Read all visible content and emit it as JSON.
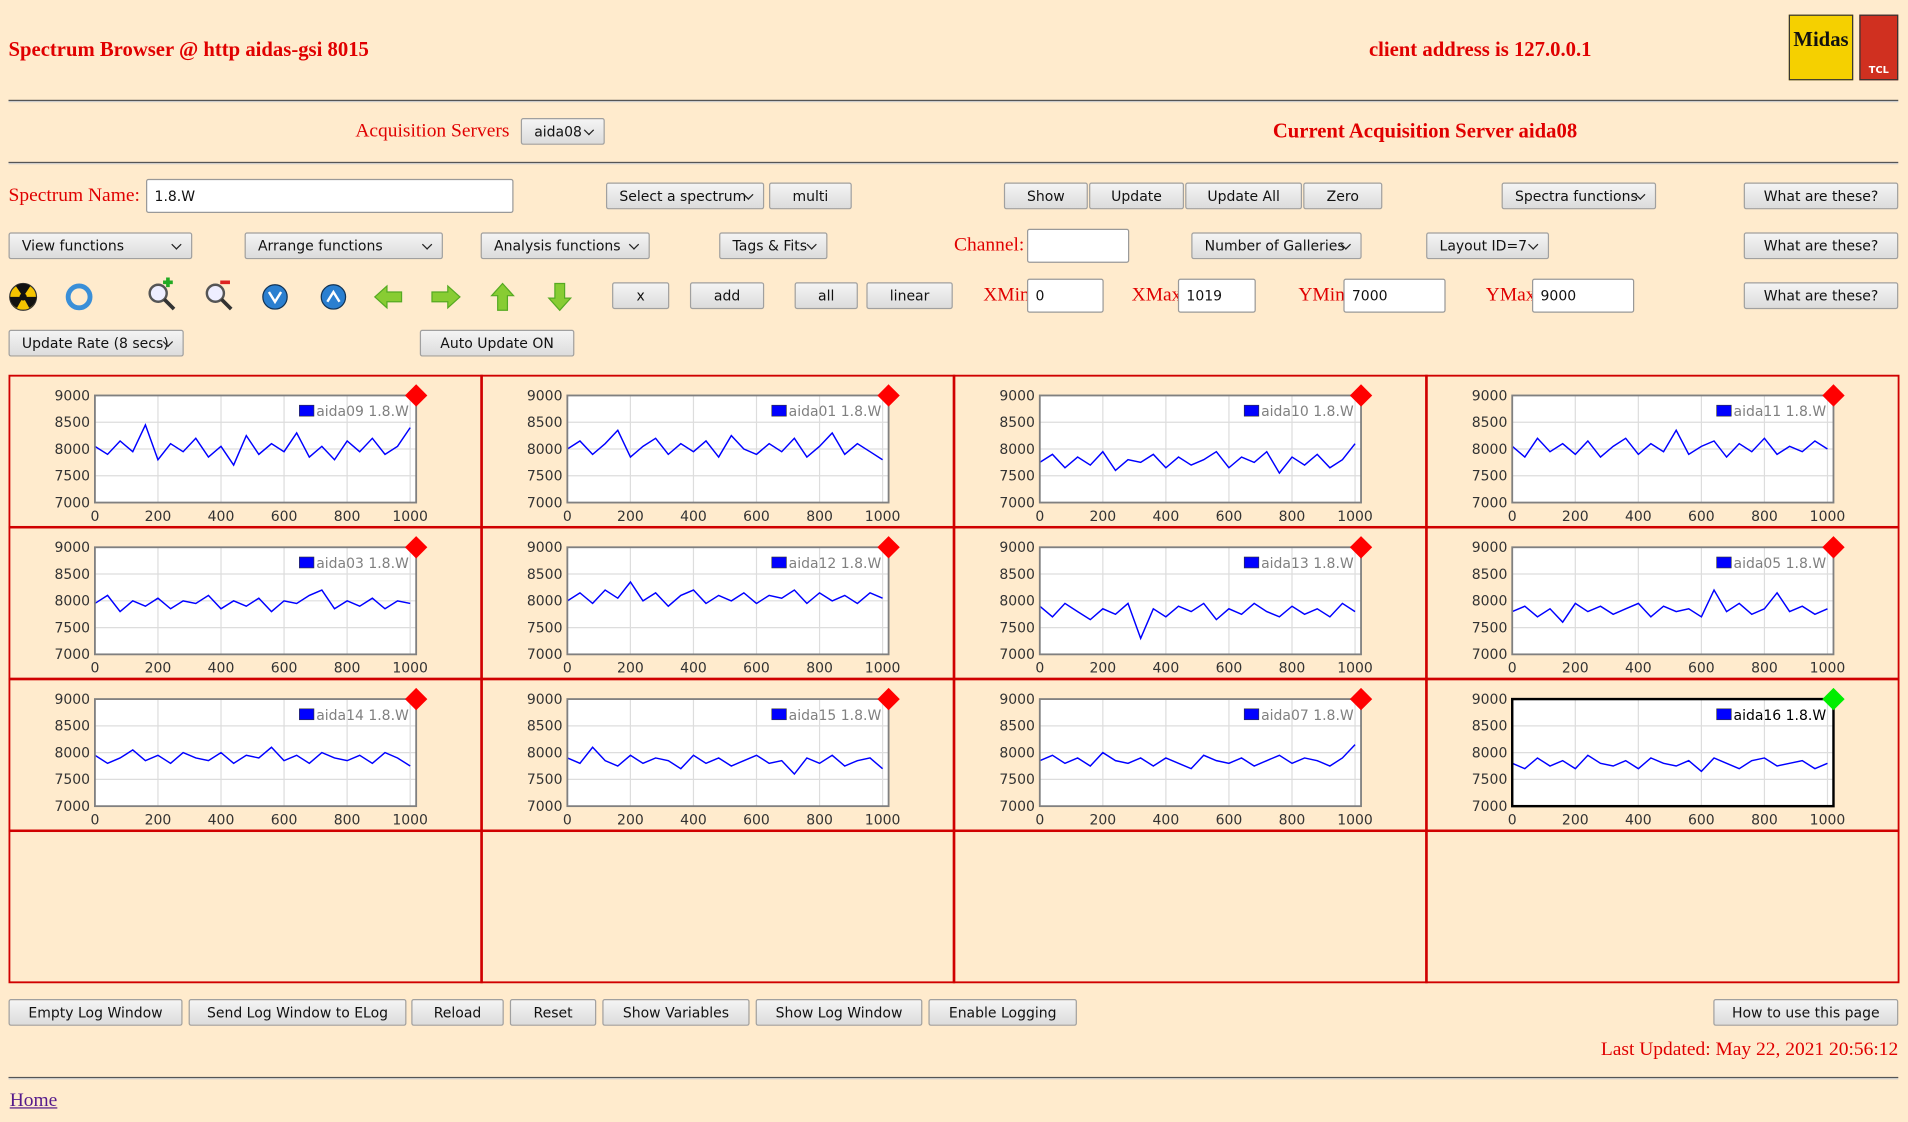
{
  "header": {
    "title": "Spectrum Browser @ http aidas-gsi 8015",
    "client_address": "client address is 127.0.0.1",
    "logo": "Midas",
    "logo2": "TCL"
  },
  "servers": {
    "label": "Acquisition Servers",
    "selected": "aida08",
    "current": "Current Acquisition Server aida08"
  },
  "controls": {
    "spectrum_name_label": "Spectrum Name:",
    "spectrum_name": "1.8.W",
    "select_spectrum": "Select a spectrum",
    "multi": "multi",
    "show": "Show",
    "update": "Update",
    "update_all": "Update All",
    "zero": "Zero",
    "spectra_functions": "Spectra functions",
    "help": [
      "What are these?",
      "What are these?",
      "What are these?"
    ],
    "view_functions": "View functions",
    "arrange_functions": "Arrange functions",
    "analysis_functions": "Analysis functions",
    "tags_fits": "Tags & Fits",
    "channel_label": "Channel:",
    "galleries": "Number of Galleries",
    "layout": "Layout ID=7",
    "x": "x",
    "add": "add",
    "all": "all",
    "linear": "linear",
    "xmin_label": "XMin",
    "xmin": "0",
    "xmax_label": "XMax",
    "xmax": "1019",
    "ymin_label": "YMin",
    "ymin": "7000",
    "ymax_label": "YMax",
    "ymax": "9000",
    "update_rate": "Update Rate (8 secs)",
    "auto_update": "Auto Update ON"
  },
  "chart_data": [
    {
      "type": "line",
      "x": [
        0,
        40,
        80,
        120,
        160,
        200,
        240,
        280,
        320,
        360,
        400,
        440,
        480,
        520,
        560,
        600,
        640,
        680,
        720,
        760,
        800,
        840,
        880,
        920,
        960,
        1000
      ],
      "series": [
        {
          "name": "aida09 1.8.W",
          "color": "#0000ff",
          "values": [
            8050,
            7900,
            8150,
            7950,
            8450,
            7800,
            8100,
            7950,
            8200,
            7850,
            8050,
            7700,
            8250,
            7900,
            8100,
            7950,
            8300,
            7850,
            8050,
            7800,
            8150,
            7950,
            8200,
            7900,
            8050,
            8400
          ]
        }
      ],
      "xlim": [
        0,
        1019
      ],
      "ylim": [
        7000,
        9000
      ],
      "xticks": [
        0,
        200,
        400,
        600,
        800,
        1000
      ],
      "yticks": [
        7000,
        7500,
        8000,
        8500,
        9000
      ],
      "grid": true,
      "legend": "top-right",
      "indicator_color": "#ff0000",
      "frame_color": "#808080"
    },
    {
      "type": "line",
      "x": [
        0,
        40,
        80,
        120,
        160,
        200,
        240,
        280,
        320,
        360,
        400,
        440,
        480,
        520,
        560,
        600,
        640,
        680,
        720,
        760,
        800,
        840,
        880,
        920,
        960,
        1000
      ],
      "series": [
        {
          "name": "aida01 1.8.W",
          "color": "#0000ff",
          "values": [
            8000,
            8150,
            7900,
            8100,
            8350,
            7850,
            8050,
            8200,
            7900,
            8100,
            7950,
            8150,
            7850,
            8250,
            8000,
            7900,
            8100,
            7950,
            8200,
            7850,
            8050,
            8300,
            7900,
            8100,
            7950,
            7800
          ]
        }
      ],
      "xlim": [
        0,
        1019
      ],
      "ylim": [
        7000,
        9000
      ],
      "xticks": [
        0,
        200,
        400,
        600,
        800,
        1000
      ],
      "yticks": [
        7000,
        7500,
        8000,
        8500,
        9000
      ],
      "grid": true,
      "legend": "top-right",
      "indicator_color": "#ff0000",
      "frame_color": "#808080"
    },
    {
      "type": "line",
      "x": [
        0,
        40,
        80,
        120,
        160,
        200,
        240,
        280,
        320,
        360,
        400,
        440,
        480,
        520,
        560,
        600,
        640,
        680,
        720,
        760,
        800,
        840,
        880,
        920,
        960,
        1000
      ],
      "series": [
        {
          "name": "aida10 1.8.W",
          "color": "#0000ff",
          "values": [
            7750,
            7900,
            7650,
            7850,
            7700,
            7950,
            7600,
            7800,
            7750,
            7900,
            7650,
            7850,
            7700,
            7800,
            7950,
            7650,
            7850,
            7750,
            7950,
            7550,
            7850,
            7700,
            7900,
            7650,
            7800,
            8100
          ]
        }
      ],
      "xlim": [
        0,
        1019
      ],
      "ylim": [
        7000,
        9000
      ],
      "xticks": [
        0,
        200,
        400,
        600,
        800,
        1000
      ],
      "yticks": [
        7000,
        7500,
        8000,
        8500,
        9000
      ],
      "grid": true,
      "legend": "top-right",
      "indicator_color": "#ff0000",
      "frame_color": "#808080"
    },
    {
      "type": "line",
      "x": [
        0,
        40,
        80,
        120,
        160,
        200,
        240,
        280,
        320,
        360,
        400,
        440,
        480,
        520,
        560,
        600,
        640,
        680,
        720,
        760,
        800,
        840,
        880,
        920,
        960,
        1000
      ],
      "series": [
        {
          "name": "aida11 1.8.W",
          "color": "#0000ff",
          "values": [
            8050,
            7850,
            8200,
            7950,
            8100,
            7900,
            8150,
            7850,
            8050,
            8200,
            7900,
            8100,
            7950,
            8350,
            7900,
            8050,
            8150,
            7850,
            8100,
            7950,
            8200,
            7900,
            8050,
            7950,
            8150,
            8000
          ]
        }
      ],
      "xlim": [
        0,
        1019
      ],
      "ylim": [
        7000,
        9000
      ],
      "xticks": [
        0,
        200,
        400,
        600,
        800,
        1000
      ],
      "yticks": [
        7000,
        7500,
        8000,
        8500,
        9000
      ],
      "grid": true,
      "legend": "top-right",
      "indicator_color": "#ff0000",
      "frame_color": "#808080"
    },
    {
      "type": "line",
      "x": [
        0,
        40,
        80,
        120,
        160,
        200,
        240,
        280,
        320,
        360,
        400,
        440,
        480,
        520,
        560,
        600,
        640,
        680,
        720,
        760,
        800,
        840,
        880,
        920,
        960,
        1000
      ],
      "series": [
        {
          "name": "aida03 1.8.W",
          "color": "#0000ff",
          "values": [
            7950,
            8100,
            7800,
            8000,
            7900,
            8050,
            7850,
            8000,
            7950,
            8100,
            7850,
            8000,
            7900,
            8050,
            7800,
            8000,
            7950,
            8100,
            8200,
            7850,
            8000,
            7900,
            8050,
            7850,
            8000,
            7950
          ]
        }
      ],
      "xlim": [
        0,
        1019
      ],
      "ylim": [
        7000,
        9000
      ],
      "xticks": [
        0,
        200,
        400,
        600,
        800,
        1000
      ],
      "yticks": [
        7000,
        7500,
        8000,
        8500,
        9000
      ],
      "grid": true,
      "legend": "top-right",
      "indicator_color": "#ff0000",
      "frame_color": "#808080"
    },
    {
      "type": "line",
      "x": [
        0,
        40,
        80,
        120,
        160,
        200,
        240,
        280,
        320,
        360,
        400,
        440,
        480,
        520,
        560,
        600,
        640,
        680,
        720,
        760,
        800,
        840,
        880,
        920,
        960,
        1000
      ],
      "series": [
        {
          "name": "aida12 1.8.W",
          "color": "#0000ff",
          "values": [
            8000,
            8150,
            7950,
            8200,
            8050,
            8350,
            8000,
            8150,
            7900,
            8100,
            8200,
            7950,
            8100,
            8000,
            8150,
            7950,
            8100,
            8050,
            8200,
            7950,
            8150,
            8000,
            8100,
            7950,
            8150,
            8050
          ]
        }
      ],
      "xlim": [
        0,
        1019
      ],
      "ylim": [
        7000,
        9000
      ],
      "xticks": [
        0,
        200,
        400,
        600,
        800,
        1000
      ],
      "yticks": [
        7000,
        7500,
        8000,
        8500,
        9000
      ],
      "grid": true,
      "legend": "top-right",
      "indicator_color": "#ff0000",
      "frame_color": "#808080"
    },
    {
      "type": "line",
      "x": [
        0,
        40,
        80,
        120,
        160,
        200,
        240,
        280,
        320,
        360,
        400,
        440,
        480,
        520,
        560,
        600,
        640,
        680,
        720,
        760,
        800,
        840,
        880,
        920,
        960,
        1000
      ],
      "series": [
        {
          "name": "aida13 1.8.W",
          "color": "#0000ff",
          "values": [
            7900,
            7700,
            7950,
            7800,
            7650,
            7850,
            7750,
            7950,
            7300,
            7850,
            7700,
            7900,
            7800,
            7950,
            7650,
            7850,
            7750,
            7950,
            7800,
            7700,
            7900,
            7750,
            7850,
            7700,
            7950,
            7800
          ]
        }
      ],
      "xlim": [
        0,
        1019
      ],
      "ylim": [
        7000,
        9000
      ],
      "xticks": [
        0,
        200,
        400,
        600,
        800,
        1000
      ],
      "yticks": [
        7000,
        7500,
        8000,
        8500,
        9000
      ],
      "grid": true,
      "legend": "top-right",
      "indicator_color": "#ff0000",
      "frame_color": "#808080"
    },
    {
      "type": "line",
      "x": [
        0,
        40,
        80,
        120,
        160,
        200,
        240,
        280,
        320,
        360,
        400,
        440,
        480,
        520,
        560,
        600,
        640,
        680,
        720,
        760,
        800,
        840,
        880,
        920,
        960,
        1000
      ],
      "series": [
        {
          "name": "aida05 1.8.W",
          "color": "#0000ff",
          "values": [
            7800,
            7900,
            7700,
            7850,
            7600,
            7950,
            7800,
            7900,
            7750,
            7850,
            7950,
            7700,
            7900,
            7800,
            7850,
            7700,
            8200,
            7800,
            7950,
            7750,
            7850,
            8150,
            7800,
            7900,
            7750,
            7850
          ]
        }
      ],
      "xlim": [
        0,
        1019
      ],
      "ylim": [
        7000,
        9000
      ],
      "xticks": [
        0,
        200,
        400,
        600,
        800,
        1000
      ],
      "yticks": [
        7000,
        7500,
        8000,
        8500,
        9000
      ],
      "grid": true,
      "legend": "top-right",
      "indicator_color": "#ff0000",
      "frame_color": "#808080"
    },
    {
      "type": "line",
      "x": [
        0,
        40,
        80,
        120,
        160,
        200,
        240,
        280,
        320,
        360,
        400,
        440,
        480,
        520,
        560,
        600,
        640,
        680,
        720,
        760,
        800,
        840,
        880,
        920,
        960,
        1000
      ],
      "series": [
        {
          "name": "aida14 1.8.W",
          "color": "#0000ff",
          "values": [
            7950,
            7800,
            7900,
            8050,
            7850,
            7950,
            7800,
            8000,
            7900,
            7850,
            8000,
            7800,
            7950,
            7900,
            8100,
            7850,
            7950,
            7800,
            8000,
            7900,
            7850,
            7950,
            7800,
            8000,
            7900,
            7750
          ]
        }
      ],
      "xlim": [
        0,
        1019
      ],
      "ylim": [
        7000,
        9000
      ],
      "xticks": [
        0,
        200,
        400,
        600,
        800,
        1000
      ],
      "yticks": [
        7000,
        7500,
        8000,
        8500,
        9000
      ],
      "grid": true,
      "legend": "top-right",
      "indicator_color": "#ff0000",
      "frame_color": "#808080"
    },
    {
      "type": "line",
      "x": [
        0,
        40,
        80,
        120,
        160,
        200,
        240,
        280,
        320,
        360,
        400,
        440,
        480,
        520,
        560,
        600,
        640,
        680,
        720,
        760,
        800,
        840,
        880,
        920,
        960,
        1000
      ],
      "series": [
        {
          "name": "aida15 1.8.W",
          "color": "#0000ff",
          "values": [
            7900,
            7800,
            8100,
            7850,
            7750,
            7950,
            7800,
            7900,
            7850,
            7700,
            7950,
            7800,
            7900,
            7750,
            7850,
            7950,
            7800,
            7850,
            7600,
            7900,
            7800,
            7950,
            7750,
            7850,
            7900,
            7700
          ]
        }
      ],
      "xlim": [
        0,
        1019
      ],
      "ylim": [
        7000,
        9000
      ],
      "xticks": [
        0,
        200,
        400,
        600,
        800,
        1000
      ],
      "yticks": [
        7000,
        7500,
        8000,
        8500,
        9000
      ],
      "grid": true,
      "legend": "top-right",
      "indicator_color": "#ff0000",
      "frame_color": "#808080"
    },
    {
      "type": "line",
      "x": [
        0,
        40,
        80,
        120,
        160,
        200,
        240,
        280,
        320,
        360,
        400,
        440,
        480,
        520,
        560,
        600,
        640,
        680,
        720,
        760,
        800,
        840,
        880,
        920,
        960,
        1000
      ],
      "series": [
        {
          "name": "aida07 1.8.W",
          "color": "#0000ff",
          "values": [
            7850,
            7950,
            7800,
            7900,
            7750,
            8000,
            7850,
            7800,
            7900,
            7750,
            7900,
            7800,
            7700,
            7950,
            7850,
            7800,
            7900,
            7750,
            7850,
            7950,
            7800,
            7900,
            7850,
            7750,
            7900,
            8150
          ]
        }
      ],
      "xlim": [
        0,
        1019
      ],
      "ylim": [
        7000,
        9000
      ],
      "xticks": [
        0,
        200,
        400,
        600,
        800,
        1000
      ],
      "yticks": [
        7000,
        7500,
        8000,
        8500,
        9000
      ],
      "grid": true,
      "legend": "top-right",
      "indicator_color": "#ff0000",
      "frame_color": "#808080"
    },
    {
      "type": "line",
      "x": [
        0,
        40,
        80,
        120,
        160,
        200,
        240,
        280,
        320,
        360,
        400,
        440,
        480,
        520,
        560,
        600,
        640,
        680,
        720,
        760,
        800,
        840,
        880,
        920,
        960,
        1000
      ],
      "series": [
        {
          "name": "aida16 1.8.W",
          "color": "#0000ff",
          "values": [
            7800,
            7700,
            7900,
            7750,
            7850,
            7700,
            7950,
            7800,
            7750,
            7850,
            7700,
            7900,
            7800,
            7750,
            7850,
            7650,
            7900,
            7800,
            7700,
            7850,
            7900,
            7750,
            7800,
            7850,
            7700,
            7800
          ]
        }
      ],
      "xlim": [
        0,
        1019
      ],
      "ylim": [
        7000,
        9000
      ],
      "xticks": [
        0,
        200,
        400,
        600,
        800,
        1000
      ],
      "yticks": [
        7000,
        7500,
        8000,
        8500,
        9000
      ],
      "grid": true,
      "legend": "top-right",
      "indicator_color": "#00ee00",
      "frame_color": "#000000"
    }
  ],
  "footer": {
    "buttons": [
      "Empty Log Window",
      "Send Log Window to ELog",
      "Reload",
      "Reset",
      "Show Variables",
      "Show Log Window",
      "Enable Logging"
    ],
    "how_to": "How to use this page",
    "last_updated": "Last Updated: May 22, 2021 20:56:12",
    "home": "Home"
  }
}
